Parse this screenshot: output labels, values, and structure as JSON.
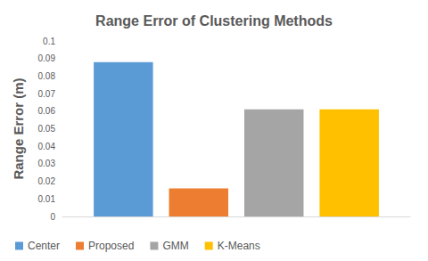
{
  "chart_data": {
    "type": "bar",
    "title": "Range Error of Clustering Methods",
    "y_label": "Range Error (m)",
    "categories": [
      null
    ],
    "series": [
      {
        "name": "Center",
        "color": "#5b9bd5",
        "values": [
          0.088
        ]
      },
      {
        "name": "Proposed",
        "color": "#ed7d31",
        "values": [
          0.016
        ]
      },
      {
        "name": "GMM",
        "color": "#a5a5a5",
        "values": [
          0.061
        ]
      },
      {
        "name": "K-Means",
        "color": "#ffc000",
        "values": [
          0.061
        ]
      }
    ],
    "ylim": [
      0,
      0.1
    ],
    "yticks": [
      0,
      0.01,
      0.02,
      0.03,
      0.04,
      0.05,
      0.06,
      0.07,
      0.08,
      0.09,
      0.1
    ],
    "grid": false,
    "legend": "bottom"
  }
}
